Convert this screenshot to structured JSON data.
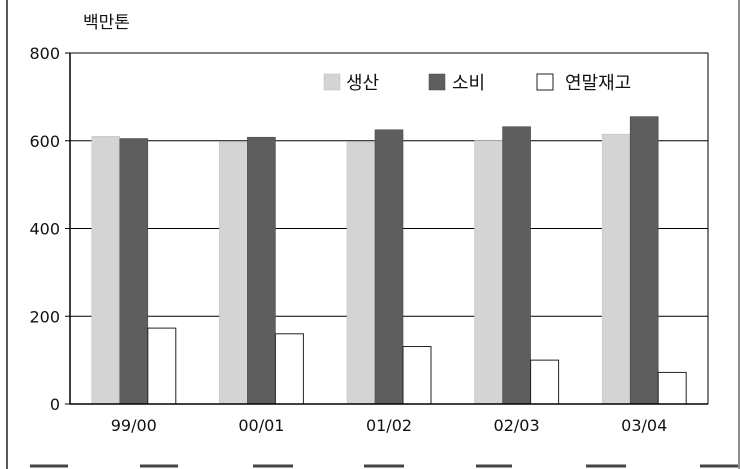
{
  "chart_data": {
    "type": "bar",
    "ylabel": "백만톤",
    "ylim": [
      0,
      800
    ],
    "yticks": [
      0,
      200,
      400,
      600,
      800
    ],
    "grid": true,
    "legend": "top-right",
    "categories": [
      "99/00",
      "00/01",
      "01/02",
      "02/03",
      "03/04"
    ],
    "series": [
      {
        "name": "생산",
        "values": [
          610,
          597,
          597,
          600,
          615
        ]
      },
      {
        "name": "소비",
        "values": [
          605,
          608,
          625,
          632,
          655
        ]
      },
      {
        "name": "연말재고",
        "values": [
          173,
          160,
          131,
          100,
          72
        ]
      }
    ]
  },
  "colors": {
    "production": "#d4d4d4",
    "consumption": "#5e5e5e",
    "ending_stock": "#ffffff",
    "grid": "#000000"
  }
}
